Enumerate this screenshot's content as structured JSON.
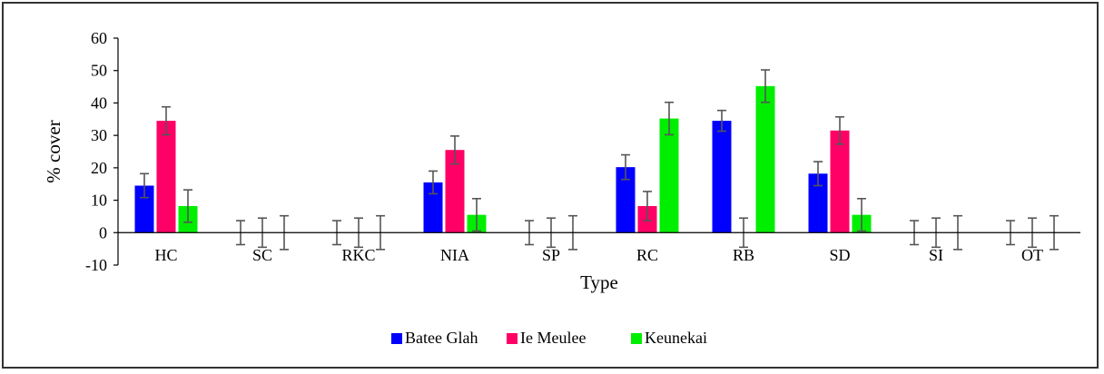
{
  "chart_data": {
    "type": "bar",
    "xlabel": "Type",
    "ylabel": "% cover",
    "ylim": [
      -10,
      60
    ],
    "yticks": [
      -10,
      0,
      10,
      20,
      30,
      40,
      50,
      60
    ],
    "grid": false,
    "legend_position": "bottom",
    "categories": [
      "HC",
      "SC",
      "RKC",
      "NIA",
      "SP",
      "RC",
      "RB",
      "SD",
      "SI",
      "OT"
    ],
    "series": [
      {
        "name": "Batee Glah",
        "color": "#0000ff",
        "values": [
          14.5,
          0,
          0,
          15.5,
          0,
          20.2,
          34.5,
          18.2,
          0,
          0
        ],
        "errors": [
          3.7,
          3.7,
          3.7,
          3.5,
          3.7,
          3.8,
          3.2,
          3.7,
          3.7,
          3.7
        ]
      },
      {
        "name": "Ie Meulee",
        "color": "#ff0066",
        "values": [
          34.5,
          0,
          0,
          25.5,
          0,
          8.2,
          0,
          31.5,
          0,
          0
        ],
        "errors": [
          4.3,
          4.5,
          4.5,
          4.3,
          4.5,
          4.5,
          4.5,
          4.2,
          4.5,
          4.5
        ]
      },
      {
        "name": "Keunekai",
        "color": "#00ee00",
        "values": [
          8.2,
          0,
          0,
          5.5,
          0,
          35.2,
          45.2,
          5.5,
          0,
          0
        ],
        "errors": [
          5.0,
          5.2,
          5.2,
          5.0,
          5.2,
          5.0,
          5.0,
          5.0,
          5.2,
          5.2
        ]
      }
    ]
  }
}
